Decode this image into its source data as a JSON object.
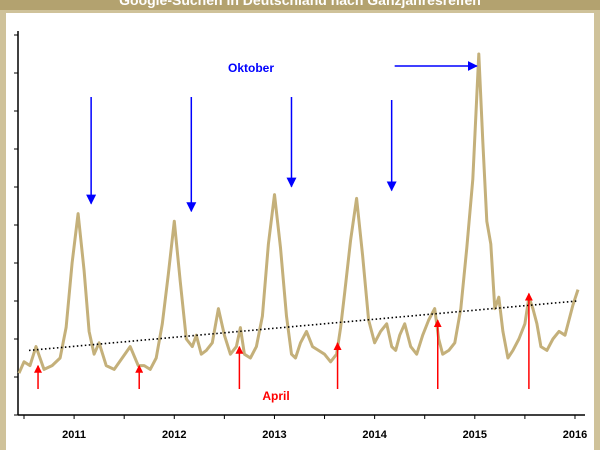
{
  "chart_data": {
    "type": "line",
    "title": "Google-Suchen in Deutschland nach Ganzjahresreifen",
    "xlabel": "",
    "ylabel": "",
    "x_tick_labels": [
      "2011",
      "2012",
      "2013",
      "2014",
      "2015",
      "2016"
    ],
    "x_range": [
      2010.54,
      2016.2
    ],
    "y_range": [
      0,
      100
    ],
    "grid": false,
    "legend": "none",
    "series": [
      {
        "color": "#c4b07a",
        "x": [
          2010.55,
          2010.6,
          2010.66,
          2010.72,
          2010.8,
          2010.88,
          2010.96,
          2011.02,
          2011.08,
          2011.14,
          2011.2,
          2011.25,
          2011.3,
          2011.35,
          2011.42,
          2011.5,
          2011.58,
          2011.66,
          2011.74,
          2011.8,
          2011.86,
          2011.92,
          2011.98,
          2012.04,
          2012.1,
          2012.16,
          2012.22,
          2012.28,
          2012.32,
          2012.37,
          2012.42,
          2012.48,
          2012.54,
          2012.6,
          2012.66,
          2012.72,
          2012.76,
          2012.8,
          2012.86,
          2012.92,
          2012.98,
          2013.04,
          2013.1,
          2013.16,
          2013.22,
          2013.27,
          2013.31,
          2013.36,
          2013.42,
          2013.48,
          2013.54,
          2013.6,
          2013.66,
          2013.72,
          2013.76,
          2013.8,
          2013.86,
          2013.92,
          2013.98,
          2014.04,
          2014.1,
          2014.16,
          2014.22,
          2014.27,
          2014.31,
          2014.35,
          2014.4,
          2014.46,
          2014.52,
          2014.58,
          2014.64,
          2014.7,
          2014.74,
          2014.78,
          2014.84,
          2014.9,
          2014.96,
          2015.02,
          2015.08,
          2015.14,
          2015.18,
          2015.22,
          2015.26,
          2015.3,
          2015.34,
          2015.38,
          2015.43,
          2015.48,
          2015.54,
          2015.6,
          2015.64,
          2015.68,
          2015.72,
          2015.76,
          2015.82,
          2015.88,
          2015.94,
          2016.0,
          2016.04,
          2016.08,
          2016.13
        ],
        "y": [
          11,
          14,
          13,
          18,
          12,
          13,
          15,
          23,
          40,
          53,
          38,
          22,
          16,
          19,
          13,
          12,
          15,
          18,
          13,
          13,
          12,
          15,
          24,
          37,
          51,
          35,
          20,
          18,
          21,
          16,
          17,
          19,
          28,
          21,
          16,
          18,
          23,
          16,
          15,
          18,
          26,
          45,
          58,
          44,
          26,
          16,
          15,
          19,
          22,
          18,
          17,
          16,
          14,
          16,
          23,
          32,
          46,
          57,
          42,
          25,
          19,
          22,
          24,
          18,
          17,
          21,
          24,
          18,
          16,
          21,
          25,
          28,
          20,
          16,
          17,
          19,
          28,
          44,
          62,
          95,
          72,
          51,
          45,
          28,
          31,
          22,
          15,
          17,
          20,
          24,
          31,
          28,
          24,
          18,
          17,
          20,
          22,
          21,
          25,
          29,
          33
        ]
      },
      {
        "name": "trend",
        "color": "#000000",
        "style": "dotted",
        "x": [
          2010.65,
          2016.12
        ],
        "y": [
          17,
          30
        ]
      }
    ],
    "annotations": [
      {
        "text": "Oktober",
        "color": "#0000ff"
      },
      {
        "text": "April",
        "color": "#ff0000"
      }
    ],
    "arrows_down_blue_x": [
      2011.27,
      2012.27,
      2013.27,
      2014.27
    ],
    "arrow_right_blue_x": [
      2014.3,
      2015.14
    ],
    "arrows_up_red_x": [
      2010.74,
      2011.75,
      2012.75,
      2013.73,
      2014.73,
      2015.64
    ]
  }
}
